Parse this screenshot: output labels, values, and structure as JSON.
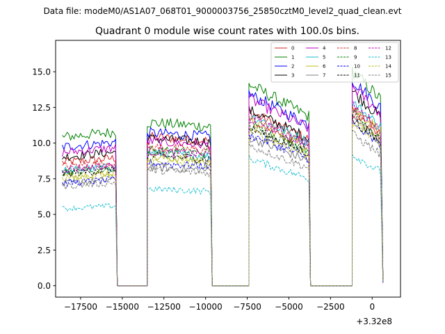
{
  "chart_data": {
    "type": "line",
    "suptitle": "Data file: modeM0/AS1A07_068T01_9000003756_25850cztM0_level2_quad_clean.evt",
    "title": "Quadrant 0 module wise count rates with 100.0s bins.",
    "xlabel": "",
    "ylabel": "",
    "x_offset_label": "+3.32e8",
    "xlim": [
      -19000,
      1700
    ],
    "ylim": [
      -0.8,
      17.2
    ],
    "xticks": [
      -17500,
      -15000,
      -12500,
      -10000,
      -7500,
      -5000,
      -2500,
      0
    ],
    "xtick_labels": [
      "−17500",
      "−15000",
      "−12500",
      "−10000",
      "−7500",
      "−5000",
      "−2500",
      "0"
    ],
    "yticks": [
      0,
      2.5,
      5,
      7.5,
      10,
      12.5,
      15
    ],
    "ytick_labels": [
      "0.0",
      "2.5",
      "5.0",
      "7.5",
      "10.0",
      "12.5",
      "15.0"
    ],
    "legend_position": "top-right",
    "segments": [
      [
        -18600,
        -15400
      ],
      [
        -13500,
        -9700
      ],
      [
        -7400,
        -3800
      ],
      [
        -1200,
        500
      ]
    ],
    "gaps": [
      [
        -15300,
        -13500
      ],
      [
        -9600,
        -7400
      ],
      [
        -3700,
        -1200
      ]
    ],
    "series": [
      {
        "name": "0",
        "color": "#d62728",
        "dash": "solid",
        "levels": [
          8.8,
          10.3,
          10.8,
          11.2
        ]
      },
      {
        "name": "1",
        "color": "#008000",
        "dash": "solid",
        "levels": [
          10.6,
          11.3,
          12.5,
          13.6
        ]
      },
      {
        "name": "2",
        "color": "#0000ff",
        "dash": "solid",
        "levels": [
          9.9,
          10.6,
          11.9,
          13.0
        ]
      },
      {
        "name": "3",
        "color": "#000000",
        "dash": "solid",
        "levels": [
          9.2,
          10.2,
          10.9,
          12.3
        ]
      },
      {
        "name": "4",
        "color": "#bf00bf",
        "dash": "solid",
        "levels": [
          9.5,
          10.0,
          11.6,
          12.6
        ]
      },
      {
        "name": "5",
        "color": "#17becf",
        "dash": "solid",
        "levels": [
          8.2,
          9.2,
          10.6,
          11.6
        ]
      },
      {
        "name": "6",
        "color": "#bcbd22",
        "dash": "solid",
        "levels": [
          7.8,
          8.9,
          10.2,
          11.3
        ]
      },
      {
        "name": "7",
        "color": "#7f7f7f",
        "dash": "solid",
        "levels": [
          7.3,
          8.2,
          9.2,
          10.6
        ]
      },
      {
        "name": "8",
        "color": "#d62728",
        "dash": "dashed",
        "levels": [
          8.5,
          9.6,
          10.3,
          11.0
        ]
      },
      {
        "name": "9",
        "color": "#008000",
        "dash": "dashed",
        "levels": [
          8.1,
          9.4,
          10.0,
          10.9
        ]
      },
      {
        "name": "10",
        "color": "#0000ff",
        "dash": "dashed",
        "levels": [
          7.3,
          8.5,
          9.4,
          10.2
        ]
      },
      {
        "name": "11",
        "color": "#000000",
        "dash": "dashed",
        "levels": [
          8.0,
          9.0,
          9.8,
          10.5
        ]
      },
      {
        "name": "12",
        "color": "#bf00bf",
        "dash": "dashed",
        "levels": [
          8.3,
          9.3,
          10.4,
          11.4
        ]
      },
      {
        "name": "13",
        "color": "#17becf",
        "dash": "dashed",
        "levels": [
          5.5,
          6.7,
          7.9,
          8.3
        ]
      },
      {
        "name": "14",
        "color": "#bcbd22",
        "dash": "dashed",
        "levels": [
          7.6,
          8.6,
          9.6,
          10.4
        ]
      },
      {
        "name": "15",
        "color": "#7f7f7f",
        "dash": "dashed",
        "levels": [
          7.1,
          8.0,
          8.7,
          9.6
        ]
      }
    ]
  }
}
